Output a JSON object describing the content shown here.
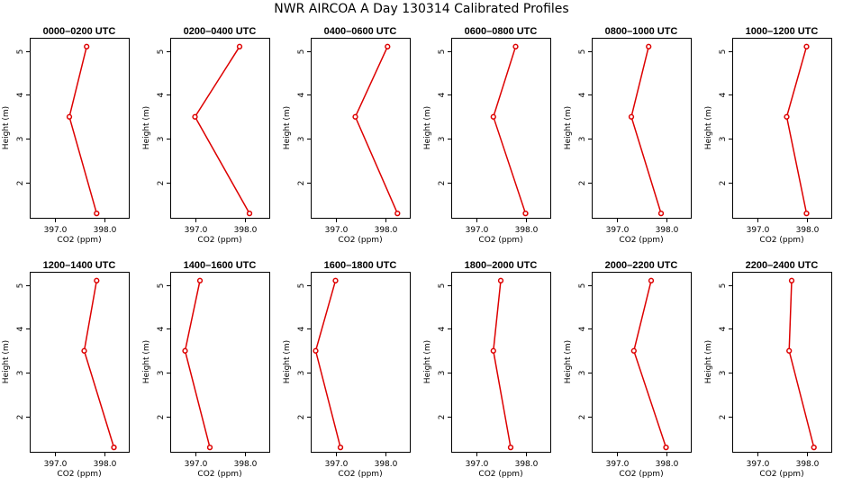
{
  "figure": {
    "title": "NWR AIRCOA A  Day 130314  Calibrated Profiles"
  },
  "chart_data": [
    {
      "type": "line",
      "title": "0000–0200 UTC",
      "xlabel": "CO2 (ppm)",
      "ylabel": "Height (m)",
      "xlim": [
        396.5,
        398.5
      ],
      "ylim": [
        1.2,
        5.3
      ],
      "xticks": [
        "397.0",
        "398.0"
      ],
      "yticks": [
        "2",
        "3",
        "4",
        "5"
      ],
      "grid": false,
      "x": [
        397.65,
        397.3,
        397.85
      ],
      "y": [
        5.1,
        3.5,
        1.3
      ]
    },
    {
      "type": "line",
      "title": "0200–0400 UTC",
      "xlabel": "CO2 (ppm)",
      "ylabel": "Height (m)",
      "xlim": [
        396.5,
        398.5
      ],
      "ylim": [
        1.2,
        5.3
      ],
      "xticks": [
        "397.0",
        "398.0"
      ],
      "yticks": [
        "2",
        "3",
        "4",
        "5"
      ],
      "grid": false,
      "x": [
        397.9,
        397.0,
        398.1
      ],
      "y": [
        5.1,
        3.5,
        1.3
      ]
    },
    {
      "type": "line",
      "title": "0400–0600 UTC",
      "xlabel": "CO2 (ppm)",
      "ylabel": "Height (m)",
      "xlim": [
        396.5,
        398.5
      ],
      "ylim": [
        1.2,
        5.3
      ],
      "xticks": [
        "397.0",
        "398.0"
      ],
      "yticks": [
        "2",
        "3",
        "4",
        "5"
      ],
      "grid": false,
      "x": [
        398.05,
        397.4,
        398.25
      ],
      "y": [
        5.1,
        3.5,
        1.3
      ]
    },
    {
      "type": "line",
      "title": "0600–0800 UTC",
      "xlabel": "CO2 (ppm)",
      "ylabel": "Height (m)",
      "xlim": [
        396.5,
        398.5
      ],
      "ylim": [
        1.2,
        5.3
      ],
      "xticks": [
        "397.0",
        "398.0"
      ],
      "yticks": [
        "2",
        "3",
        "4",
        "5"
      ],
      "grid": false,
      "x": [
        397.8,
        397.35,
        398.0
      ],
      "y": [
        5.1,
        3.5,
        1.3
      ]
    },
    {
      "type": "line",
      "title": "0800–1000 UTC",
      "xlabel": "CO2 (ppm)",
      "ylabel": "Height (m)",
      "xlim": [
        396.5,
        398.5
      ],
      "ylim": [
        1.2,
        5.3
      ],
      "xticks": [
        "397.0",
        "398.0"
      ],
      "yticks": [
        "2",
        "3",
        "4",
        "5"
      ],
      "grid": false,
      "x": [
        397.65,
        397.3,
        397.9
      ],
      "y": [
        5.1,
        3.5,
        1.3
      ]
    },
    {
      "type": "line",
      "title": "1000–1200 UTC",
      "xlabel": "CO2 (ppm)",
      "ylabel": "Height (m)",
      "xlim": [
        396.5,
        398.5
      ],
      "ylim": [
        1.2,
        5.3
      ],
      "xticks": [
        "397.0",
        "398.0"
      ],
      "yticks": [
        "2",
        "3",
        "4",
        "5"
      ],
      "grid": false,
      "x": [
        398.0,
        397.6,
        398.0
      ],
      "y": [
        5.1,
        3.5,
        1.3
      ]
    },
    {
      "type": "line",
      "title": "1200–1400 UTC",
      "xlabel": "CO2 (ppm)",
      "ylabel": "Height (m)",
      "xlim": [
        396.5,
        398.5
      ],
      "ylim": [
        1.2,
        5.3
      ],
      "xticks": [
        "397.0",
        "398.0"
      ],
      "yticks": [
        "2",
        "3",
        "4",
        "5"
      ],
      "grid": false,
      "x": [
        397.85,
        397.6,
        398.2
      ],
      "y": [
        5.1,
        3.5,
        1.3
      ]
    },
    {
      "type": "line",
      "title": "1400–1600 UTC",
      "xlabel": "CO2 (ppm)",
      "ylabel": "Height (m)",
      "xlim": [
        396.5,
        398.5
      ],
      "ylim": [
        1.2,
        5.3
      ],
      "xticks": [
        "397.0",
        "398.0"
      ],
      "yticks": [
        "2",
        "3",
        "4",
        "5"
      ],
      "grid": false,
      "x": [
        397.1,
        396.8,
        397.3
      ],
      "y": [
        5.1,
        3.5,
        1.3
      ]
    },
    {
      "type": "line",
      "title": "1600–1800 UTC",
      "xlabel": "CO2 (ppm)",
      "ylabel": "Height (m)",
      "xlim": [
        396.5,
        398.5
      ],
      "ylim": [
        1.2,
        5.3
      ],
      "xticks": [
        "397.0",
        "398.0"
      ],
      "yticks": [
        "2",
        "3",
        "4",
        "5"
      ],
      "grid": false,
      "x": [
        397.0,
        396.6,
        397.1
      ],
      "y": [
        5.1,
        3.5,
        1.3
      ]
    },
    {
      "type": "line",
      "title": "1800–2000 UTC",
      "xlabel": "CO2 (ppm)",
      "ylabel": "Height (m)",
      "xlim": [
        396.5,
        398.5
      ],
      "ylim": [
        1.2,
        5.3
      ],
      "xticks": [
        "397.0",
        "398.0"
      ],
      "yticks": [
        "2",
        "3",
        "4",
        "5"
      ],
      "grid": false,
      "x": [
        397.5,
        397.35,
        397.7
      ],
      "y": [
        5.1,
        3.5,
        1.3
      ]
    },
    {
      "type": "line",
      "title": "2000–2200 UTC",
      "xlabel": "CO2 (ppm)",
      "ylabel": "Height (m)",
      "xlim": [
        396.5,
        398.5
      ],
      "ylim": [
        1.2,
        5.3
      ],
      "xticks": [
        "397.0",
        "398.0"
      ],
      "yticks": [
        "2",
        "3",
        "4",
        "5"
      ],
      "grid": false,
      "x": [
        397.7,
        397.35,
        398.0
      ],
      "y": [
        5.1,
        3.5,
        1.3
      ]
    },
    {
      "type": "line",
      "title": "2200–2400 UTC",
      "xlabel": "CO2 (ppm)",
      "ylabel": "Height (m)",
      "xlim": [
        396.5,
        398.5
      ],
      "ylim": [
        1.2,
        5.3
      ],
      "xticks": [
        "397.0",
        "398.0"
      ],
      "yticks": [
        "2",
        "3",
        "4",
        "5"
      ],
      "grid": false,
      "x": [
        397.7,
        397.65,
        398.15
      ],
      "y": [
        5.1,
        3.5,
        1.3
      ]
    }
  ]
}
